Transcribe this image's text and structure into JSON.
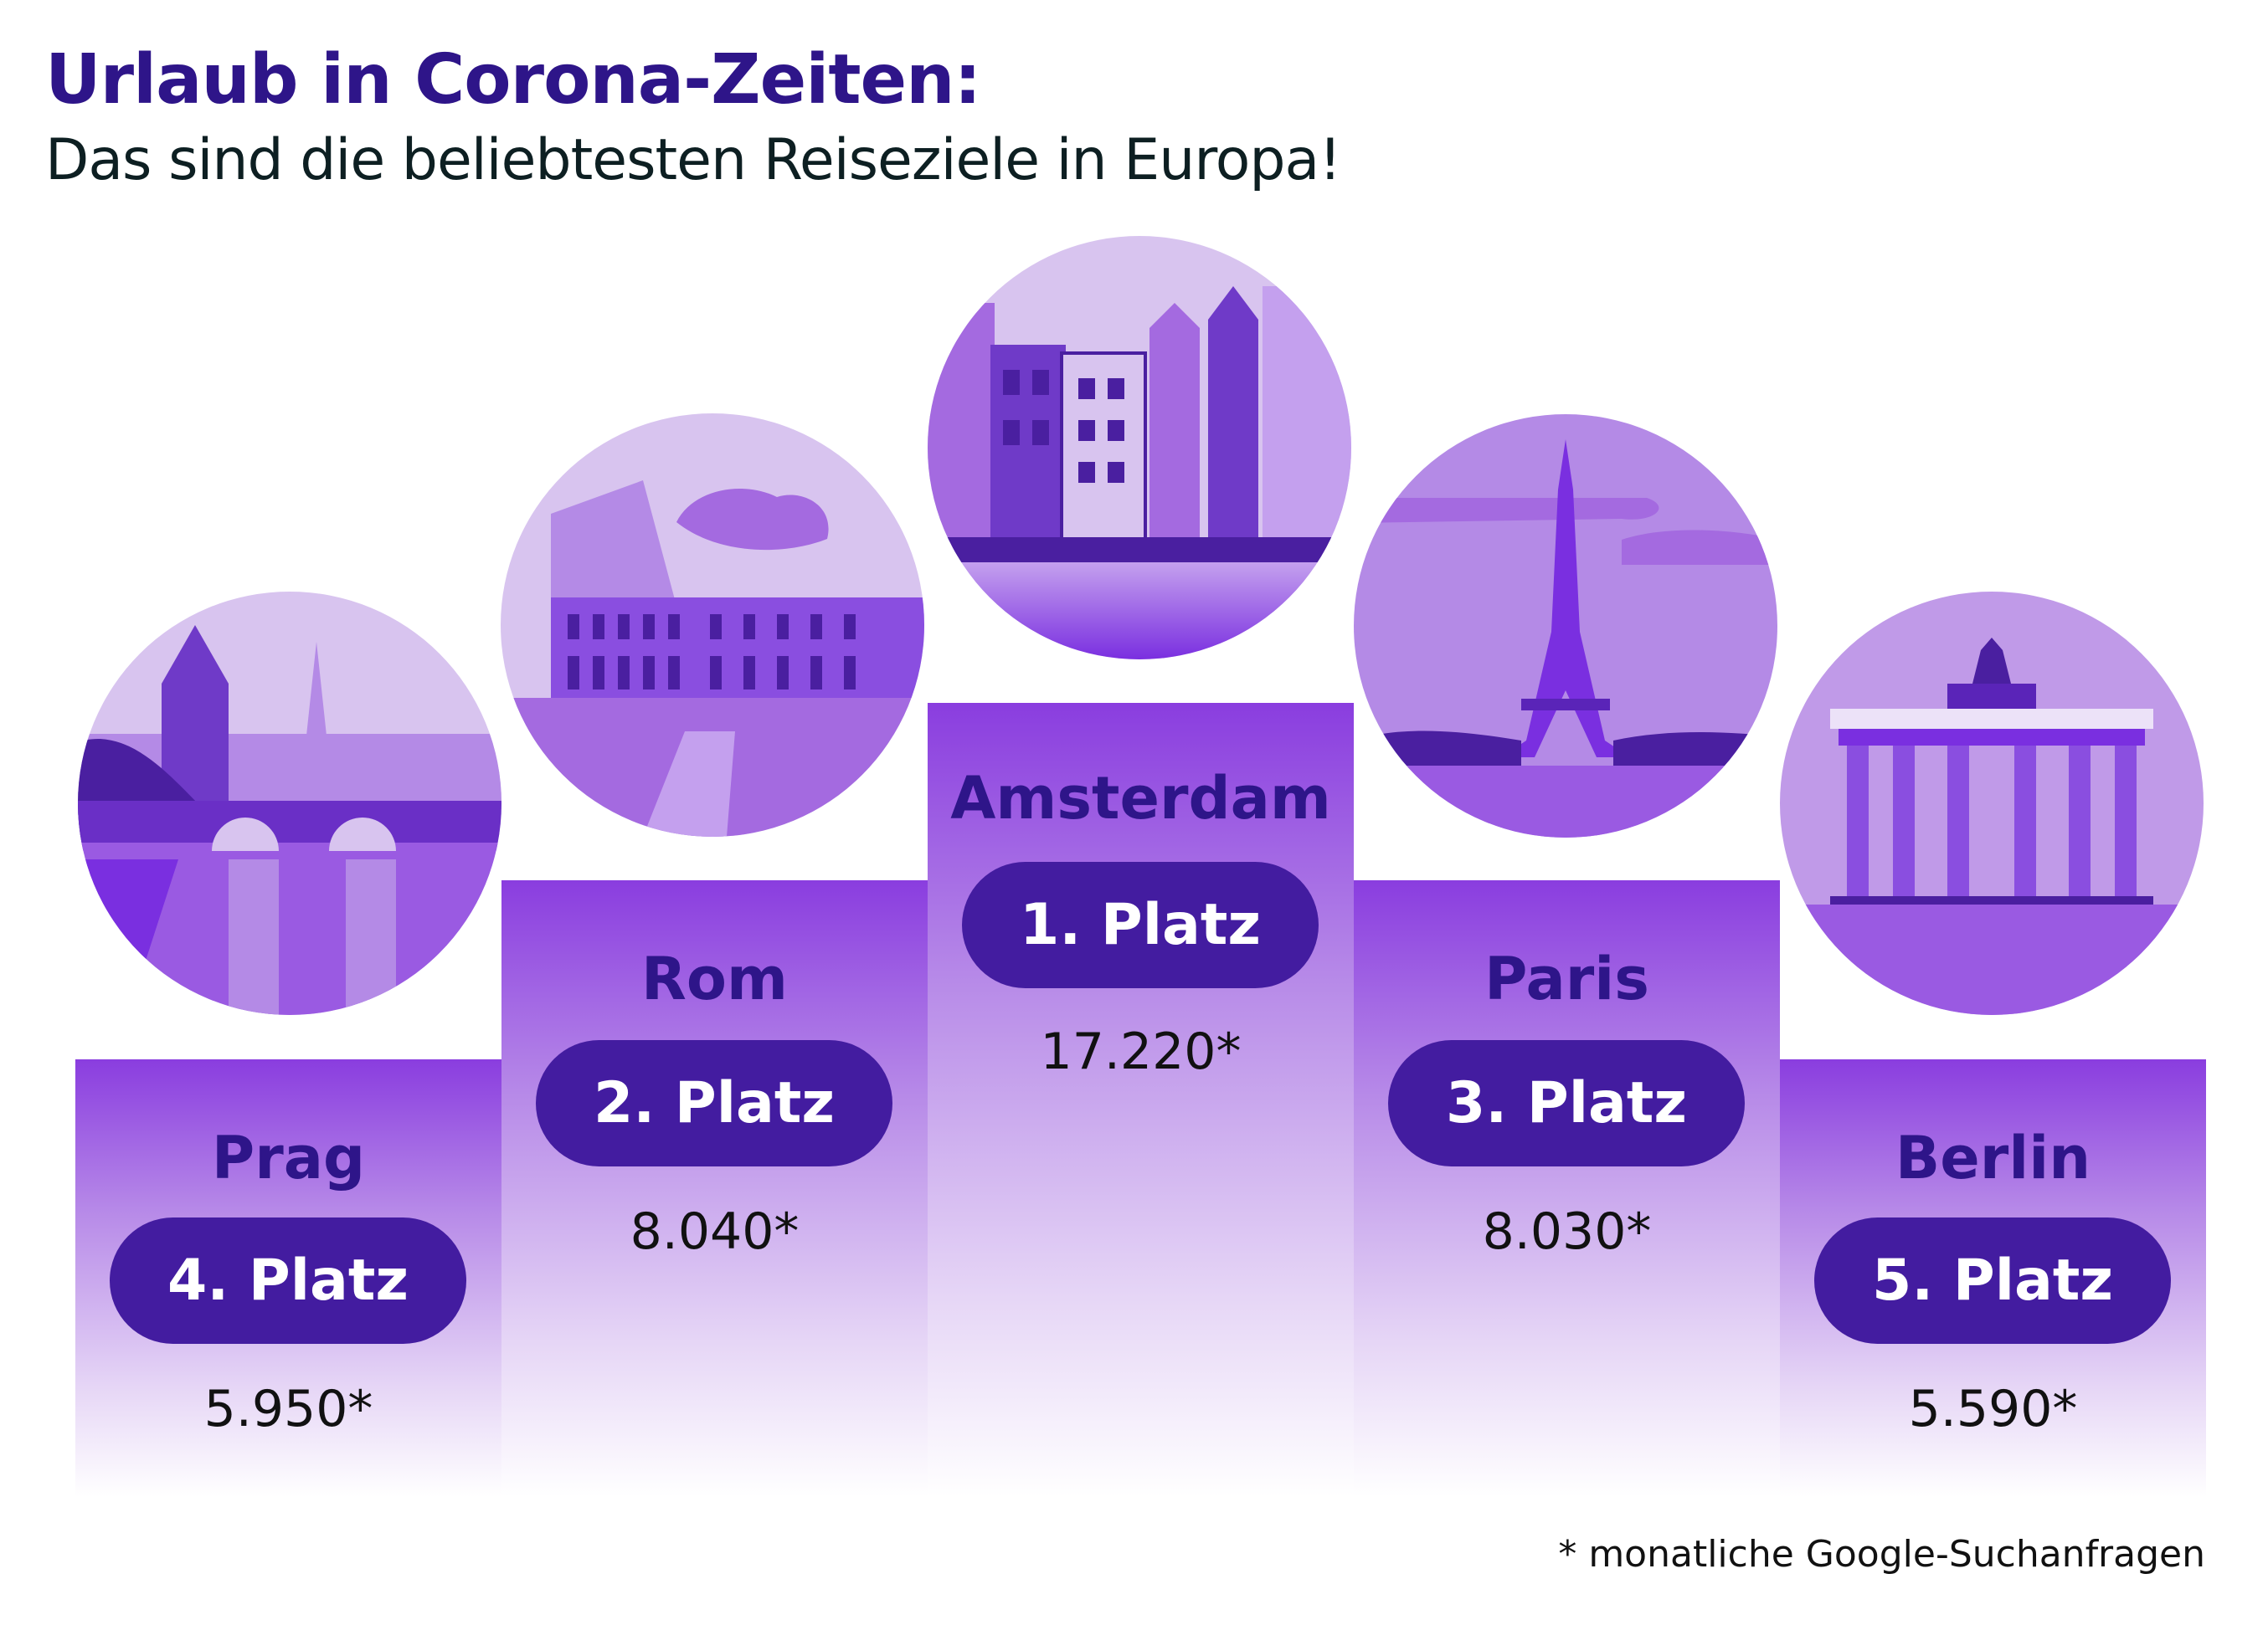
{
  "header": {
    "title": "Urlaub in Corona-Zeiten:",
    "subtitle": "Das sind die beliebtesten Reiseziele in Europa!"
  },
  "colors": {
    "title": "#2e1589",
    "pill": "#431ca0",
    "column_top": "#8a3ddf"
  },
  "podium": [
    {
      "city": "Prag",
      "rank": "4. Platz",
      "value": "5.950*",
      "icon": "prague-charles-bridge-illustration"
    },
    {
      "city": "Rom",
      "rank": "2. Platz",
      "value": "8.040*",
      "icon": "rome-colosseum-illustration"
    },
    {
      "city": "Amsterdam",
      "rank": "1. Platz",
      "value": "17.220*",
      "icon": "amsterdam-canal-houses-illustration"
    },
    {
      "city": "Paris",
      "rank": "3. Platz",
      "value": "8.030*",
      "icon": "paris-eiffel-tower-illustration"
    },
    {
      "city": "Berlin",
      "rank": "5. Platz",
      "value": "5.590*",
      "icon": "berlin-brandenburg-gate-illustration"
    }
  ],
  "footnote": "* monatliche Google-Suchanfragen"
}
